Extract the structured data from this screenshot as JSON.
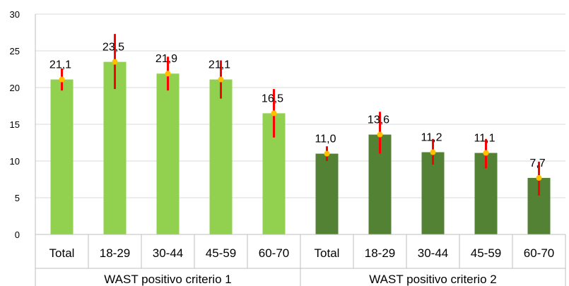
{
  "chart_data": {
    "type": "bar",
    "title": "",
    "xlabel": "",
    "ylabel": "",
    "ylim": [
      0,
      30
    ],
    "yticks": [
      0,
      5,
      10,
      15,
      20,
      25,
      30
    ],
    "ytick_labels": [
      "0",
      "5",
      "10",
      "15",
      "20",
      "25",
      "30"
    ],
    "grid": true,
    "legend": "none",
    "group_labels": [
      "WAST positivo criterio 1",
      "WAST positivo criterio 2"
    ],
    "categories": [
      "Total",
      "18-29",
      "30-44",
      "45-59",
      "60-70",
      "Total",
      "18-29",
      "30-44",
      "45-59",
      "60-70"
    ],
    "values": [
      21.1,
      23.5,
      21.9,
      21.1,
      16.5,
      11.0,
      13.6,
      11.2,
      11.1,
      7.7
    ],
    "value_labels": [
      "21,1",
      "23,5",
      "21,9",
      "21,1",
      "16,5",
      "11,0",
      "13,6",
      "11,2",
      "11,1",
      "7,7"
    ],
    "error_low": [
      19.6,
      19.8,
      19.6,
      18.5,
      13.2,
      10.0,
      11.0,
      9.5,
      9.0,
      5.3
    ],
    "error_high": [
      22.6,
      27.3,
      24.2,
      23.7,
      19.8,
      12.0,
      16.7,
      13.0,
      13.0,
      9.9
    ],
    "bar_colors": [
      "#92d050",
      "#92d050",
      "#92d050",
      "#92d050",
      "#92d050",
      "#548235",
      "#548235",
      "#548235",
      "#548235",
      "#548235"
    ],
    "error_color": "#ff0000",
    "marker_color": "#ffc000",
    "grid_color": "#d9d9d9"
  }
}
